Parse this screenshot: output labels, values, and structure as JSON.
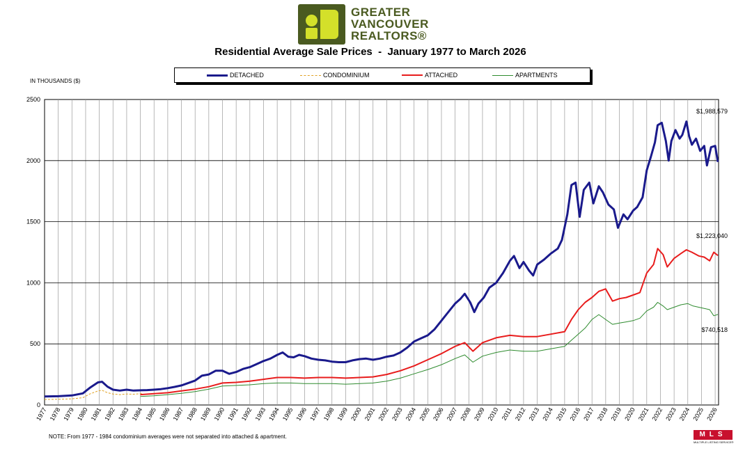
{
  "header": {
    "logo_line1": "GREATER",
    "logo_line2": "VANCOUVER",
    "logo_line3": "REALTORS®",
    "title": "Residential Average Sale Prices  -  January 1977 to March 2026"
  },
  "units_label": "IN THOUSANDS ($)",
  "note": "NOTE:  From 1977 - 1984 condominium averages were not separated into attached & apartment.",
  "mls_logo": {
    "text": "MLS",
    "subtext": "MULTIPLE LISTING SERVICE®"
  },
  "chart_data": {
    "type": "line",
    "title": "Residential Average Sale Prices  -  January 1977 to March 2026",
    "ylabel": "IN THOUSANDS ($)",
    "ylim": [
      0,
      2500
    ],
    "yticks": [
      0,
      500,
      1000,
      1500,
      2000,
      2500
    ],
    "xlim": [
      1977,
      2026.25
    ],
    "xtick_labels": [
      "1977",
      "1978",
      "1979",
      "1980",
      "1981",
      "1982",
      "1983",
      "1984",
      "1985",
      "1986",
      "1987",
      "1988",
      "1989",
      "1990",
      "1991",
      "1992",
      "1993",
      "1994",
      "1995",
      "1996",
      "1997",
      "1998",
      "1999",
      "2000",
      "2001",
      "2002",
      "2003",
      "2004",
      "2005",
      "2006",
      "2007",
      "2008",
      "2009",
      "2010",
      "2011",
      "2012",
      "2013",
      "2014",
      "2015",
      "2016",
      "2017",
      "2018",
      "2019",
      "2020",
      "2021",
      "2022",
      "2023",
      "2024",
      "2025",
      "2026"
    ],
    "grid": true,
    "legend_position": "top",
    "annotations": [
      {
        "label": "$1,988,579",
        "series": "DETACHED",
        "x": 2026.2,
        "y": 1988.579
      },
      {
        "label": "$1,223,040",
        "series": "ATTACHED",
        "x": 2026.2,
        "y": 1223.04
      },
      {
        "label": "$740,518",
        "series": "APARTMENTS",
        "x": 2026.2,
        "y": 740.518
      }
    ],
    "series": [
      {
        "name": "DETACHED",
        "color": "#1a1a8c",
        "style": "solid",
        "width": 3,
        "points": [
          [
            1977,
            70
          ],
          [
            1978,
            72
          ],
          [
            1979,
            78
          ],
          [
            1979.8,
            95
          ],
          [
            1980.3,
            140
          ],
          [
            1980.9,
            185
          ],
          [
            1981.2,
            190
          ],
          [
            1981.6,
            150
          ],
          [
            1982,
            125
          ],
          [
            1982.5,
            118
          ],
          [
            1983,
            125
          ],
          [
            1983.5,
            118
          ],
          [
            1984,
            120
          ],
          [
            1984.5,
            122
          ],
          [
            1985,
            125
          ],
          [
            1985.5,
            130
          ],
          [
            1986,
            138
          ],
          [
            1986.5,
            148
          ],
          [
            1987,
            160
          ],
          [
            1987.5,
            180
          ],
          [
            1988,
            200
          ],
          [
            1988.5,
            240
          ],
          [
            1989,
            250
          ],
          [
            1989.5,
            280
          ],
          [
            1990,
            280
          ],
          [
            1990.5,
            255
          ],
          [
            1991,
            270
          ],
          [
            1991.5,
            295
          ],
          [
            1992,
            310
          ],
          [
            1992.5,
            335
          ],
          [
            1993,
            360
          ],
          [
            1993.5,
            380
          ],
          [
            1994,
            410
          ],
          [
            1994.4,
            430
          ],
          [
            1994.8,
            395
          ],
          [
            1995.2,
            390
          ],
          [
            1995.6,
            410
          ],
          [
            1996,
            400
          ],
          [
            1996.5,
            380
          ],
          [
            1997,
            370
          ],
          [
            1997.5,
            365
          ],
          [
            1998,
            355
          ],
          [
            1998.5,
            350
          ],
          [
            1999,
            350
          ],
          [
            1999.5,
            365
          ],
          [
            2000,
            375
          ],
          [
            2000.5,
            380
          ],
          [
            2001,
            370
          ],
          [
            2001.5,
            380
          ],
          [
            2002,
            395
          ],
          [
            2002.5,
            405
          ],
          [
            2003,
            430
          ],
          [
            2003.5,
            470
          ],
          [
            2004,
            520
          ],
          [
            2004.5,
            545
          ],
          [
            2005,
            570
          ],
          [
            2005.5,
            620
          ],
          [
            2006,
            690
          ],
          [
            2006.5,
            760
          ],
          [
            2007,
            830
          ],
          [
            2007.4,
            870
          ],
          [
            2007.7,
            910
          ],
          [
            2008.1,
            840
          ],
          [
            2008.4,
            760
          ],
          [
            2008.7,
            830
          ],
          [
            2009.1,
            880
          ],
          [
            2009.5,
            960
          ],
          [
            2010,
            1000
          ],
          [
            2010.5,
            1080
          ],
          [
            2011,
            1180
          ],
          [
            2011.3,
            1220
          ],
          [
            2011.7,
            1120
          ],
          [
            2012,
            1170
          ],
          [
            2012.4,
            1100
          ],
          [
            2012.7,
            1060
          ],
          [
            2013,
            1150
          ],
          [
            2013.5,
            1190
          ],
          [
            2014,
            1240
          ],
          [
            2014.5,
            1280
          ],
          [
            2014.8,
            1350
          ],
          [
            2015.2,
            1560
          ],
          [
            2015.5,
            1800
          ],
          [
            2015.8,
            1820
          ],
          [
            2016.1,
            1540
          ],
          [
            2016.4,
            1760
          ],
          [
            2016.8,
            1820
          ],
          [
            2017.1,
            1650
          ],
          [
            2017.5,
            1790
          ],
          [
            2017.8,
            1740
          ],
          [
            2018.2,
            1640
          ],
          [
            2018.6,
            1600
          ],
          [
            2018.9,
            1450
          ],
          [
            2019.3,
            1560
          ],
          [
            2019.6,
            1520
          ],
          [
            2020,
            1590
          ],
          [
            2020.3,
            1620
          ],
          [
            2020.7,
            1700
          ],
          [
            2021,
            1920
          ],
          [
            2021.3,
            2030
          ],
          [
            2021.6,
            2150
          ],
          [
            2021.8,
            2290
          ],
          [
            2022.1,
            2310
          ],
          [
            2022.4,
            2160
          ],
          [
            2022.6,
            2000
          ],
          [
            2022.8,
            2160
          ],
          [
            2023.1,
            2250
          ],
          [
            2023.4,
            2180
          ],
          [
            2023.6,
            2210
          ],
          [
            2023.9,
            2320
          ],
          [
            2024.1,
            2200
          ],
          [
            2024.3,
            2130
          ],
          [
            2024.6,
            2180
          ],
          [
            2024.9,
            2080
          ],
          [
            2025.2,
            2120
          ],
          [
            2025.4,
            1960
          ],
          [
            2025.7,
            2110
          ],
          [
            2026.0,
            2120
          ],
          [
            2026.2,
            1989
          ]
        ]
      },
      {
        "name": "CONDOMINIUM",
        "color": "#e0a020",
        "style": "dashed",
        "width": 1,
        "points": [
          [
            1977,
            45
          ],
          [
            1978,
            47
          ],
          [
            1979,
            50
          ],
          [
            1979.8,
            60
          ],
          [
            1980.3,
            90
          ],
          [
            1980.9,
            115
          ],
          [
            1981.2,
            120
          ],
          [
            1981.6,
            100
          ],
          [
            1982,
            90
          ],
          [
            1982.5,
            85
          ],
          [
            1983,
            90
          ],
          [
            1983.5,
            88
          ],
          [
            1984,
            92
          ],
          [
            1984.2,
            95
          ]
        ]
      },
      {
        "name": "ATTACHED",
        "color": "#e81c1c",
        "style": "solid",
        "width": 2,
        "points": [
          [
            1984,
            85
          ],
          [
            1985,
            92
          ],
          [
            1986,
            100
          ],
          [
            1987,
            115
          ],
          [
            1988,
            130
          ],
          [
            1989,
            150
          ],
          [
            1990,
            180
          ],
          [
            1991,
            185
          ],
          [
            1992,
            195
          ],
          [
            1993,
            210
          ],
          [
            1994,
            225
          ],
          [
            1995,
            225
          ],
          [
            1996,
            220
          ],
          [
            1997,
            225
          ],
          [
            1998,
            225
          ],
          [
            1999,
            220
          ],
          [
            2000,
            225
          ],
          [
            2001,
            230
          ],
          [
            2002,
            250
          ],
          [
            2003,
            280
          ],
          [
            2004,
            320
          ],
          [
            2005,
            370
          ],
          [
            2006,
            420
          ],
          [
            2007,
            480
          ],
          [
            2007.7,
            510
          ],
          [
            2008.3,
            440
          ],
          [
            2009,
            510
          ],
          [
            2010,
            550
          ],
          [
            2011,
            570
          ],
          [
            2012,
            560
          ],
          [
            2013,
            560
          ],
          [
            2014,
            580
          ],
          [
            2015,
            600
          ],
          [
            2015.5,
            700
          ],
          [
            2016,
            780
          ],
          [
            2016.5,
            840
          ],
          [
            2017,
            880
          ],
          [
            2017.5,
            930
          ],
          [
            2018,
            950
          ],
          [
            2018.5,
            850
          ],
          [
            2019,
            870
          ],
          [
            2019.5,
            880
          ],
          [
            2020,
            900
          ],
          [
            2020.5,
            920
          ],
          [
            2021,
            1080
          ],
          [
            2021.5,
            1150
          ],
          [
            2021.8,
            1280
          ],
          [
            2022.2,
            1230
          ],
          [
            2022.5,
            1130
          ],
          [
            2023,
            1200
          ],
          [
            2023.5,
            1240
          ],
          [
            2023.9,
            1270
          ],
          [
            2024.3,
            1250
          ],
          [
            2024.8,
            1220
          ],
          [
            2025.2,
            1210
          ],
          [
            2025.6,
            1180
          ],
          [
            2025.9,
            1250
          ],
          [
            2026.2,
            1223
          ]
        ]
      },
      {
        "name": "APARTMENTS",
        "color": "#2e8b2e",
        "style": "solid",
        "width": 1,
        "points": [
          [
            1984,
            70
          ],
          [
            1985,
            75
          ],
          [
            1986,
            85
          ],
          [
            1987,
            95
          ],
          [
            1988,
            110
          ],
          [
            1989,
            130
          ],
          [
            1990,
            155
          ],
          [
            1991,
            160
          ],
          [
            1992,
            165
          ],
          [
            1993,
            175
          ],
          [
            1994,
            180
          ],
          [
            1995,
            180
          ],
          [
            1996,
            175
          ],
          [
            1997,
            175
          ],
          [
            1998,
            175
          ],
          [
            1999,
            170
          ],
          [
            2000,
            175
          ],
          [
            2001,
            180
          ],
          [
            2002,
            195
          ],
          [
            2003,
            220
          ],
          [
            2004,
            255
          ],
          [
            2005,
            290
          ],
          [
            2006,
            330
          ],
          [
            2007,
            380
          ],
          [
            2007.7,
            410
          ],
          [
            2008.3,
            350
          ],
          [
            2009,
            400
          ],
          [
            2010,
            430
          ],
          [
            2011,
            450
          ],
          [
            2012,
            440
          ],
          [
            2013,
            440
          ],
          [
            2014,
            460
          ],
          [
            2015,
            480
          ],
          [
            2015.5,
            530
          ],
          [
            2016,
            580
          ],
          [
            2016.5,
            630
          ],
          [
            2017,
            700
          ],
          [
            2017.5,
            740
          ],
          [
            2018,
            700
          ],
          [
            2018.5,
            660
          ],
          [
            2019,
            670
          ],
          [
            2019.5,
            680
          ],
          [
            2020,
            690
          ],
          [
            2020.5,
            710
          ],
          [
            2021,
            770
          ],
          [
            2021.5,
            800
          ],
          [
            2021.8,
            840
          ],
          [
            2022.2,
            810
          ],
          [
            2022.5,
            780
          ],
          [
            2023,
            800
          ],
          [
            2023.5,
            820
          ],
          [
            2024,
            830
          ],
          [
            2024.4,
            810
          ],
          [
            2024.8,
            800
          ],
          [
            2025.2,
            790
          ],
          [
            2025.6,
            780
          ],
          [
            2025.9,
            730
          ],
          [
            2026.2,
            741
          ]
        ]
      }
    ]
  }
}
